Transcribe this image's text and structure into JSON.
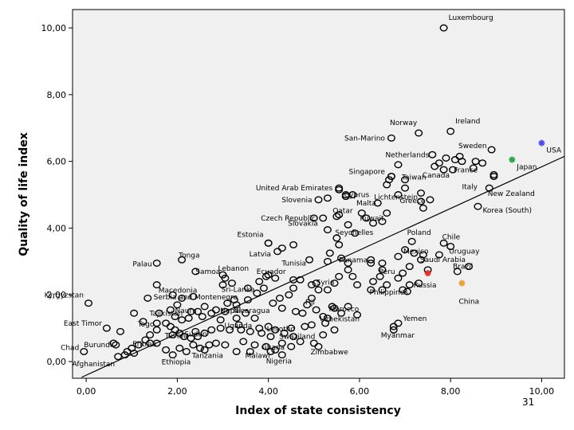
{
  "page": {
    "number": "31"
  },
  "chart_data": {
    "type": "scatter",
    "xlabel": "Index of state consistency",
    "ylabel": "Quality of life index",
    "xlim": [
      -0.3,
      10.5
    ],
    "ylim": [
      -0.5,
      10.55
    ],
    "x_ticks": [
      "0,00",
      "2,00",
      "4,00",
      "6,00",
      "8,00",
      "10,00"
    ],
    "x_tick_values": [
      0,
      2,
      4,
      6,
      8,
      10
    ],
    "y_ticks": [
      "0,00",
      "2,00",
      "4,00",
      "6,00",
      "8,00",
      "10,00"
    ],
    "y_tick_values": [
      0,
      2,
      4,
      6,
      8,
      10
    ],
    "grid": false,
    "background_color": "#f0f0f0",
    "marker_color": "#000000",
    "fit_line": {
      "x": [
        -0.1,
        10.5
      ],
      "y": [
        -0.47,
        6.15
      ]
    },
    "highlighted_points": [
      {
        "label": "USA",
        "x": 10.0,
        "y": 6.55,
        "color": "#4f4fe6",
        "marker": "asterisk"
      },
      {
        "label": "Japan",
        "x": 9.35,
        "y": 6.05,
        "color": "#2aa84a",
        "marker": "asterisk"
      },
      {
        "label": "Russia",
        "x": 7.5,
        "y": 2.65,
        "color": "#e23232",
        "marker": "asterisk"
      },
      {
        "label": "China",
        "x": 8.25,
        "y": 2.35,
        "color": "#f0a030",
        "marker": "asterisk"
      }
    ],
    "labeled_points": [
      {
        "label": "Luxembourg",
        "x": 7.85,
        "y": 10.0
      },
      {
        "label": "Norway",
        "x": 7.3,
        "y": 6.85
      },
      {
        "label": "Ireland",
        "x": 8.0,
        "y": 6.9
      },
      {
        "label": "San-Marino",
        "x": 6.7,
        "y": 6.7
      },
      {
        "label": "Netherlands",
        "x": 7.6,
        "y": 6.2
      },
      {
        "label": "Sweden",
        "x": 8.9,
        "y": 6.35
      },
      {
        "label": "France",
        "x": 8.7,
        "y": 5.95
      },
      {
        "label": "Canada",
        "x": 8.05,
        "y": 5.75
      },
      {
        "label": "Singapore",
        "x": 6.7,
        "y": 5.55
      },
      {
        "label": "Taiwan",
        "x": 7.0,
        "y": 5.45
      },
      {
        "label": "Italy",
        "x": 8.95,
        "y": 5.6
      },
      {
        "label": "United Arab Emirates",
        "x": 5.55,
        "y": 5.2
      },
      {
        "label": "Lichtenstein",
        "x": 7.35,
        "y": 5.05
      },
      {
        "label": "Slovenia",
        "x": 5.1,
        "y": 4.85
      },
      {
        "label": "Cyprus",
        "x": 5.7,
        "y": 5.0
      },
      {
        "label": "New Zealand",
        "x": 8.85,
        "y": 5.2
      },
      {
        "label": "Malta",
        "x": 6.4,
        "y": 4.75
      },
      {
        "label": "Greece",
        "x": 7.55,
        "y": 4.85
      },
      {
        "label": "Korea (South)",
        "x": 8.6,
        "y": 4.65
      },
      {
        "label": "Qatar",
        "x": 5.55,
        "y": 4.4
      },
      {
        "label": "Czech Republic",
        "x": 5.0,
        "y": 4.3
      },
      {
        "label": "Kuwait",
        "x": 6.15,
        "y": 4.3
      },
      {
        "label": "Estonia",
        "x": 4.0,
        "y": 3.55
      },
      {
        "label": "Slovakia",
        "x": 5.3,
        "y": 3.95
      },
      {
        "label": "Seychelles",
        "x": 5.5,
        "y": 3.7
      },
      {
        "label": "Poland",
        "x": 7.15,
        "y": 3.6
      },
      {
        "label": "Chile",
        "x": 7.85,
        "y": 3.55
      },
      {
        "label": "Latvia",
        "x": 4.2,
        "y": 3.3
      },
      {
        "label": "Mexico",
        "x": 7.0,
        "y": 3.35
      },
      {
        "label": "Uruguay",
        "x": 8.0,
        "y": 3.45
      },
      {
        "label": "Tonga",
        "x": 2.1,
        "y": 3.05
      },
      {
        "label": "Palau",
        "x": 1.55,
        "y": 2.95
      },
      {
        "label": "Tunisia",
        "x": 4.9,
        "y": 3.05
      },
      {
        "label": "Panama",
        "x": 6.25,
        "y": 3.05
      },
      {
        "label": "Saudi Arabia",
        "x": 7.4,
        "y": 3.2
      },
      {
        "label": "Brazil",
        "x": 8.4,
        "y": 2.85
      },
      {
        "label": "Ecuador",
        "x": 3.95,
        "y": 2.55
      },
      {
        "label": "Lebanon",
        "x": 3.0,
        "y": 2.6
      },
      {
        "label": "Samoa",
        "x": 2.4,
        "y": 2.7
      },
      {
        "label": "Peru",
        "x": 6.5,
        "y": 2.75
      },
      {
        "label": "Macedonia",
        "x": 1.55,
        "y": 2.3
      },
      {
        "label": "Sri-Lanka",
        "x": 3.0,
        "y": 2.3
      },
      {
        "label": "Syria",
        "x": 5.05,
        "y": 2.35
      },
      {
        "label": "Serbia and Montenegro",
        "x": 1.9,
        "y": 2.0
      },
      {
        "label": "Kyrgyzstan",
        "x": 0.05,
        "y": 1.75
      },
      {
        "label": "Philippines",
        "x": 6.5,
        "y": 2.15
      },
      {
        "label": "Fiji",
        "x": 4.95,
        "y": 1.9
      },
      {
        "label": "Nicaragua",
        "x": 3.3,
        "y": 1.7
      },
      {
        "label": "Tajikistan",
        "x": 1.6,
        "y": 1.45
      },
      {
        "label": "Nepal",
        "x": 3.05,
        "y": 1.5
      },
      {
        "label": "Nauru",
        "x": 2.3,
        "y": 1.5
      },
      {
        "label": "Morocco",
        "x": 5.4,
        "y": 1.65
      },
      {
        "label": "East Timor",
        "x": 0.45,
        "y": 1.0
      },
      {
        "label": "Togo",
        "x": 1.55,
        "y": 1.15
      },
      {
        "label": "Uganda",
        "x": 3.35,
        "y": 1.1
      },
      {
        "label": "Uzbekistan",
        "x": 5.2,
        "y": 1.35
      },
      {
        "label": "Yemen",
        "x": 6.85,
        "y": 1.15
      },
      {
        "label": "Sudan",
        "x": 2.4,
        "y": 0.9
      },
      {
        "label": "Lesotho",
        "x": 4.0,
        "y": 1.05
      },
      {
        "label": "Myanmar",
        "x": 6.75,
        "y": 0.95
      },
      {
        "label": "Tuvalu",
        "x": 1.9,
        "y": 0.8
      },
      {
        "label": "Swaziland",
        "x": 4.55,
        "y": 0.75
      },
      {
        "label": "Eritrea",
        "x": 1.4,
        "y": 0.55
      },
      {
        "label": "Chad",
        "x": -0.05,
        "y": 0.3
      },
      {
        "label": "Burundi",
        "x": 0.65,
        "y": 0.5
      },
      {
        "label": "Ghana",
        "x": 4.3,
        "y": 0.55
      },
      {
        "label": "Zimbabwe",
        "x": 5.1,
        "y": 0.45
      },
      {
        "label": "Malawi",
        "x": 4.05,
        "y": 0.3
      },
      {
        "label": "Tanzania",
        "x": 2.6,
        "y": 0.35
      },
      {
        "label": "Nigeria",
        "x": 4.3,
        "y": 0.2
      },
      {
        "label": "Ethiopia",
        "x": 1.9,
        "y": 0.2
      },
      {
        "label": "Afghanistan",
        "x": 0.7,
        "y": 0.15
      }
    ],
    "unlabeled_points": [
      [
        8.1,
        6.05
      ],
      [
        8.2,
        6.15
      ],
      [
        8.25,
        6.0
      ],
      [
        7.65,
        5.85
      ],
      [
        7.9,
        6.1
      ],
      [
        7.75,
        5.95
      ],
      [
        8.55,
        6.0
      ],
      [
        8.5,
        5.8
      ],
      [
        7.85,
        5.75
      ],
      [
        6.85,
        5.9
      ],
      [
        6.7,
        5.55
      ],
      [
        6.6,
        5.3
      ],
      [
        6.65,
        5.45
      ],
      [
        8.95,
        5.55
      ],
      [
        7.0,
        5.2
      ],
      [
        6.85,
        5.0
      ],
      [
        5.85,
        5.0
      ],
      [
        5.7,
        4.95
      ],
      [
        5.55,
        5.15
      ],
      [
        5.3,
        4.9
      ],
      [
        7.4,
        4.6
      ],
      [
        7.35,
        4.8
      ],
      [
        6.6,
        4.45
      ],
      [
        6.5,
        4.2
      ],
      [
        6.3,
        4.15
      ],
      [
        5.75,
        4.1
      ],
      [
        5.9,
        3.85
      ],
      [
        5.5,
        4.35
      ],
      [
        6.05,
        4.45
      ],
      [
        5.2,
        4.3
      ],
      [
        4.0,
        3.55
      ],
      [
        4.3,
        3.4
      ],
      [
        4.55,
        3.5
      ],
      [
        5.55,
        3.5
      ],
      [
        5.35,
        3.25
      ],
      [
        5.3,
        3.0
      ],
      [
        5.6,
        3.1
      ],
      [
        5.75,
        2.95
      ],
      [
        6.25,
        2.95
      ],
      [
        6.5,
        2.95
      ],
      [
        6.85,
        3.15
      ],
      [
        7.2,
        3.25
      ],
      [
        7.35,
        3.05
      ],
      [
        7.75,
        3.2
      ],
      [
        8.15,
        2.7
      ],
      [
        7.5,
        2.75
      ],
      [
        7.1,
        2.85
      ],
      [
        6.95,
        2.65
      ],
      [
        6.85,
        2.5
      ],
      [
        7.1,
        2.3
      ],
      [
        6.95,
        2.15
      ],
      [
        7.3,
        2.35
      ],
      [
        7.05,
        2.1
      ],
      [
        6.6,
        2.3
      ],
      [
        6.45,
        2.55
      ],
      [
        6.3,
        2.4
      ],
      [
        6.25,
        2.15
      ],
      [
        5.95,
        2.3
      ],
      [
        5.85,
        2.55
      ],
      [
        5.75,
        2.75
      ],
      [
        5.55,
        2.55
      ],
      [
        5.45,
        2.35
      ],
      [
        5.3,
        2.15
      ],
      [
        5.1,
        2.15
      ],
      [
        4.95,
        2.3
      ],
      [
        4.7,
        2.45
      ],
      [
        4.55,
        2.45
      ],
      [
        4.55,
        2.2
      ],
      [
        4.45,
        2.0
      ],
      [
        4.25,
        1.9
      ],
      [
        4.1,
        1.75
      ],
      [
        4.3,
        1.6
      ],
      [
        4.6,
        1.5
      ],
      [
        4.75,
        1.45
      ],
      [
        4.85,
        1.7
      ],
      [
        5.05,
        1.55
      ],
      [
        5.45,
        1.6
      ],
      [
        5.6,
        1.45
      ],
      [
        5.75,
        1.65
      ],
      [
        5.95,
        1.4
      ],
      [
        5.3,
        1.3
      ],
      [
        5.25,
        1.15
      ],
      [
        6.75,
        1.05
      ],
      [
        4.95,
        1.1
      ],
      [
        4.8,
        1.05
      ],
      [
        4.5,
        1.0
      ],
      [
        4.35,
        0.85
      ],
      [
        4.15,
        0.95
      ],
      [
        4.05,
        0.75
      ],
      [
        3.85,
        0.85
      ],
      [
        3.8,
        1.0
      ],
      [
        3.6,
        0.9
      ],
      [
        3.4,
        0.95
      ],
      [
        3.15,
        0.95
      ],
      [
        2.95,
        1.0
      ],
      [
        2.75,
        0.95
      ],
      [
        2.6,
        0.85
      ],
      [
        2.45,
        0.75
      ],
      [
        2.3,
        0.7
      ],
      [
        2.15,
        0.75
      ],
      [
        2.05,
        0.85
      ],
      [
        1.95,
        0.95
      ],
      [
        1.85,
        1.05
      ],
      [
        1.75,
        1.15
      ],
      [
        1.55,
        0.95
      ],
      [
        1.4,
        0.8
      ],
      [
        1.3,
        0.65
      ],
      [
        1.15,
        0.5
      ],
      [
        1.0,
        0.4
      ],
      [
        0.9,
        0.3
      ],
      [
        0.85,
        0.2
      ],
      [
        1.05,
        0.25
      ],
      [
        3.5,
        1.45
      ],
      [
        3.7,
        1.3
      ],
      [
        3.3,
        1.3
      ],
      [
        2.95,
        1.25
      ],
      [
        2.75,
        1.45
      ],
      [
        2.55,
        1.35
      ],
      [
        2.45,
        1.5
      ],
      [
        2.25,
        1.3
      ],
      [
        2.1,
        1.25
      ],
      [
        1.95,
        1.35
      ],
      [
        1.85,
        1.55
      ],
      [
        2.0,
        1.7
      ],
      [
        2.1,
        1.9
      ],
      [
        2.35,
        1.95
      ],
      [
        2.6,
        1.65
      ],
      [
        2.85,
        1.55
      ],
      [
        3.1,
        1.75
      ],
      [
        3.25,
        1.85
      ],
      [
        3.55,
        1.85
      ],
      [
        3.75,
        2.05
      ],
      [
        3.9,
        2.2
      ],
      [
        3.55,
        2.2
      ],
      [
        3.2,
        2.35
      ],
      [
        3.05,
        2.5
      ],
      [
        3.8,
        2.4
      ],
      [
        4.0,
        2.6
      ],
      [
        4.15,
        2.5
      ],
      [
        1.35,
        1.9
      ],
      [
        1.05,
        1.45
      ],
      [
        1.25,
        1.2
      ],
      [
        0.75,
        0.9
      ],
      [
        0.6,
        0.55
      ],
      [
        2.85,
        0.55
      ],
      [
        3.05,
        0.5
      ],
      [
        3.45,
        0.6
      ],
      [
        3.7,
        0.5
      ],
      [
        3.95,
        0.45
      ],
      [
        4.15,
        0.35
      ],
      [
        4.5,
        0.45
      ],
      [
        4.7,
        0.6
      ],
      [
        5.0,
        0.55
      ],
      [
        5.2,
        0.8
      ],
      [
        5.45,
        0.95
      ],
      [
        2.7,
        0.5
      ],
      [
        2.5,
        0.4
      ],
      [
        2.35,
        0.5
      ],
      [
        2.2,
        0.3
      ],
      [
        2.05,
        0.4
      ],
      [
        3.3,
        0.3
      ],
      [
        3.6,
        0.3
      ],
      [
        1.75,
        0.35
      ],
      [
        1.55,
        0.55
      ]
    ]
  }
}
